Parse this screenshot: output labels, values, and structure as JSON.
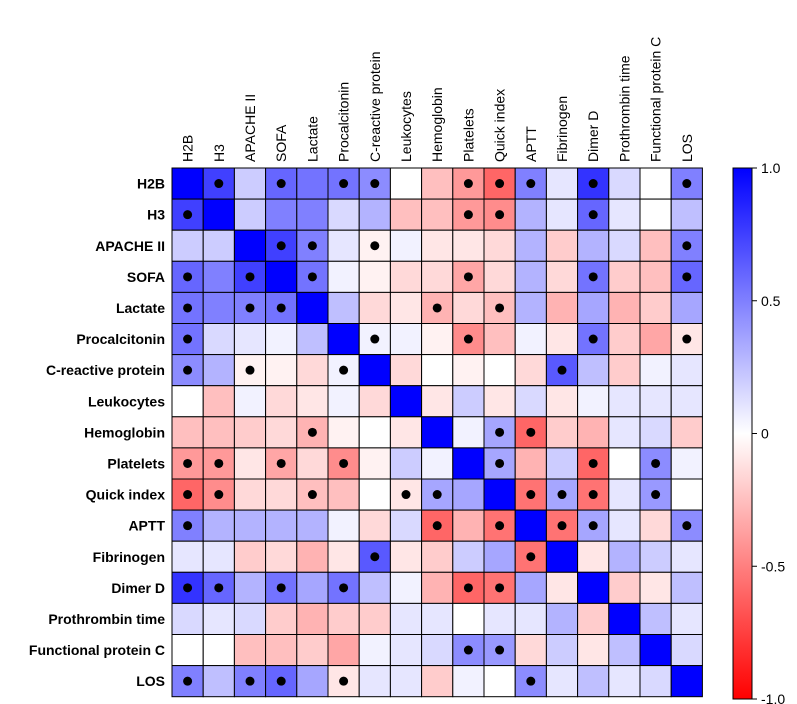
{
  "chart_data": {
    "type": "heatmap",
    "title": "",
    "variables": [
      "H2B",
      "H3",
      "APACHE II",
      "SOFA",
      "Lactate",
      "Procalcitonin",
      "C-reactive protein",
      "Leukocytes",
      "Hemoglobin",
      "Platelets",
      "Quick index",
      "APTT",
      "Fibrinogen",
      "Dimer D",
      "Prothrombin time",
      "Functional protein C",
      "LOS"
    ],
    "value_range": [
      -1.0,
      1.0
    ],
    "colorbar": {
      "ticks": [
        "1.0",
        "0.5",
        "0",
        "-0.5",
        "-1.0"
      ],
      "tick_values": [
        1.0,
        0.5,
        0,
        -0.5,
        -1.0
      ],
      "colors": {
        "negative": "#ff0000",
        "zero": "#ffffff",
        "positive": "#0000ff"
      }
    },
    "correlation_matrix": [
      [
        1.0,
        0.75,
        0.2,
        0.6,
        0.55,
        0.55,
        0.45,
        0.0,
        -0.25,
        -0.4,
        -0.6,
        0.5,
        0.1,
        0.8,
        0.15,
        0.0,
        0.5
      ],
      [
        0.75,
        1.0,
        0.2,
        0.5,
        0.5,
        0.15,
        0.3,
        -0.25,
        -0.25,
        -0.4,
        -0.45,
        0.3,
        0.1,
        0.6,
        0.1,
        0.0,
        0.25
      ],
      [
        0.2,
        0.2,
        1.0,
        0.75,
        0.5,
        0.1,
        -0.05,
        0.05,
        -0.1,
        -0.1,
        -0.15,
        0.3,
        -0.2,
        0.3,
        0.15,
        -0.25,
        0.5
      ],
      [
        0.6,
        0.5,
        0.75,
        1.0,
        0.55,
        0.05,
        -0.05,
        -0.15,
        -0.15,
        -0.35,
        -0.15,
        0.3,
        -0.15,
        0.55,
        -0.2,
        -0.25,
        0.6
      ],
      [
        0.55,
        0.5,
        0.5,
        0.55,
        1.0,
        0.25,
        -0.15,
        -0.1,
        -0.3,
        -0.15,
        -0.25,
        0.3,
        -0.3,
        0.35,
        -0.3,
        -0.2,
        0.35
      ],
      [
        0.55,
        0.15,
        0.1,
        0.05,
        0.25,
        1.0,
        0.05,
        0.05,
        -0.05,
        -0.45,
        -0.25,
        0.05,
        -0.1,
        0.55,
        -0.2,
        -0.35,
        -0.1
      ],
      [
        0.45,
        0.3,
        -0.05,
        -0.05,
        -0.15,
        0.05,
        1.0,
        -0.15,
        0.0,
        -0.05,
        0.0,
        -0.15,
        0.65,
        0.25,
        -0.2,
        0.05,
        0.1
      ],
      [
        0.0,
        -0.25,
        0.05,
        -0.15,
        -0.1,
        0.05,
        -0.15,
        1.0,
        -0.1,
        0.2,
        -0.1,
        0.15,
        -0.1,
        0.05,
        0.1,
        0.1,
        0.1
      ],
      [
        -0.25,
        -0.25,
        -0.2,
        -0.15,
        -0.3,
        -0.05,
        0.0,
        -0.1,
        1.0,
        0.05,
        0.35,
        -0.6,
        -0.2,
        -0.3,
        0.1,
        0.15,
        -0.2
      ],
      [
        -0.4,
        -0.4,
        -0.1,
        -0.35,
        -0.15,
        -0.45,
        -0.05,
        0.2,
        0.05,
        1.0,
        0.35,
        -0.3,
        0.2,
        -0.6,
        0.0,
        0.45,
        0.05
      ],
      [
        -0.6,
        -0.45,
        -0.15,
        -0.15,
        -0.25,
        -0.25,
        0.0,
        -0.1,
        0.35,
        0.35,
        1.0,
        -0.55,
        0.35,
        -0.55,
        0.1,
        0.4,
        0.0
      ],
      [
        0.5,
        0.3,
        0.3,
        0.3,
        0.3,
        0.05,
        -0.15,
        0.15,
        -0.6,
        -0.3,
        -0.55,
        1.0,
        -0.55,
        0.35,
        0.1,
        -0.15,
        0.45
      ],
      [
        0.1,
        0.1,
        -0.2,
        -0.15,
        -0.3,
        -0.1,
        0.65,
        -0.1,
        -0.2,
        0.2,
        0.35,
        -0.55,
        1.0,
        -0.1,
        0.3,
        0.2,
        0.1
      ],
      [
        0.8,
        0.6,
        0.3,
        0.55,
        0.35,
        0.55,
        0.25,
        0.05,
        -0.3,
        -0.6,
        -0.55,
        0.35,
        -0.1,
        1.0,
        -0.2,
        -0.1,
        0.25
      ],
      [
        0.15,
        0.1,
        0.15,
        -0.2,
        -0.3,
        -0.2,
        -0.2,
        0.1,
        0.1,
        0.0,
        0.1,
        0.1,
        0.3,
        -0.2,
        1.0,
        0.25,
        0.1
      ],
      [
        0.0,
        0.0,
        -0.25,
        -0.25,
        -0.2,
        -0.35,
        0.05,
        0.1,
        0.15,
        0.45,
        0.4,
        -0.15,
        0.2,
        -0.1,
        0.25,
        1.0,
        0.15
      ],
      [
        0.5,
        0.25,
        0.5,
        0.6,
        0.35,
        -0.1,
        0.1,
        0.1,
        -0.2,
        0.05,
        0.0,
        0.45,
        0.1,
        0.25,
        0.1,
        0.15,
        1.0
      ]
    ],
    "significance_markers": [
      [
        0,
        1
      ],
      [
        0,
        3
      ],
      [
        0,
        5
      ],
      [
        0,
        6
      ],
      [
        0,
        9
      ],
      [
        0,
        10
      ],
      [
        0,
        11
      ],
      [
        0,
        13
      ],
      [
        0,
        16
      ],
      [
        1,
        0
      ],
      [
        1,
        9
      ],
      [
        1,
        10
      ],
      [
        1,
        13
      ],
      [
        2,
        3
      ],
      [
        2,
        4
      ],
      [
        2,
        6
      ],
      [
        2,
        16
      ],
      [
        3,
        0
      ],
      [
        3,
        2
      ],
      [
        3,
        4
      ],
      [
        3,
        9
      ],
      [
        3,
        13
      ],
      [
        3,
        16
      ],
      [
        4,
        0
      ],
      [
        4,
        2
      ],
      [
        4,
        3
      ],
      [
        4,
        8
      ],
      [
        4,
        10
      ],
      [
        5,
        0
      ],
      [
        5,
        6
      ],
      [
        5,
        9
      ],
      [
        5,
        13
      ],
      [
        5,
        16
      ],
      [
        6,
        0
      ],
      [
        6,
        2
      ],
      [
        6,
        5
      ],
      [
        6,
        12
      ],
      [
        8,
        4
      ],
      [
        8,
        10
      ],
      [
        8,
        11
      ],
      [
        9,
        0
      ],
      [
        9,
        1
      ],
      [
        9,
        3
      ],
      [
        9,
        5
      ],
      [
        9,
        10
      ],
      [
        9,
        13
      ],
      [
        9,
        15
      ],
      [
        10,
        0
      ],
      [
        10,
        1
      ],
      [
        10,
        4
      ],
      [
        10,
        7
      ],
      [
        10,
        8
      ],
      [
        10,
        11
      ],
      [
        10,
        12
      ],
      [
        10,
        13
      ],
      [
        10,
        15
      ],
      [
        11,
        0
      ],
      [
        11,
        8
      ],
      [
        11,
        10
      ],
      [
        11,
        12
      ],
      [
        11,
        13
      ],
      [
        11,
        16
      ],
      [
        12,
        6
      ],
      [
        12,
        11
      ],
      [
        13,
        0
      ],
      [
        13,
        1
      ],
      [
        13,
        3
      ],
      [
        13,
        5
      ],
      [
        13,
        9
      ],
      [
        13,
        10
      ],
      [
        15,
        9
      ],
      [
        15,
        10
      ],
      [
        16,
        0
      ],
      [
        16,
        2
      ],
      [
        16,
        3
      ],
      [
        16,
        5
      ],
      [
        16,
        11
      ]
    ]
  }
}
